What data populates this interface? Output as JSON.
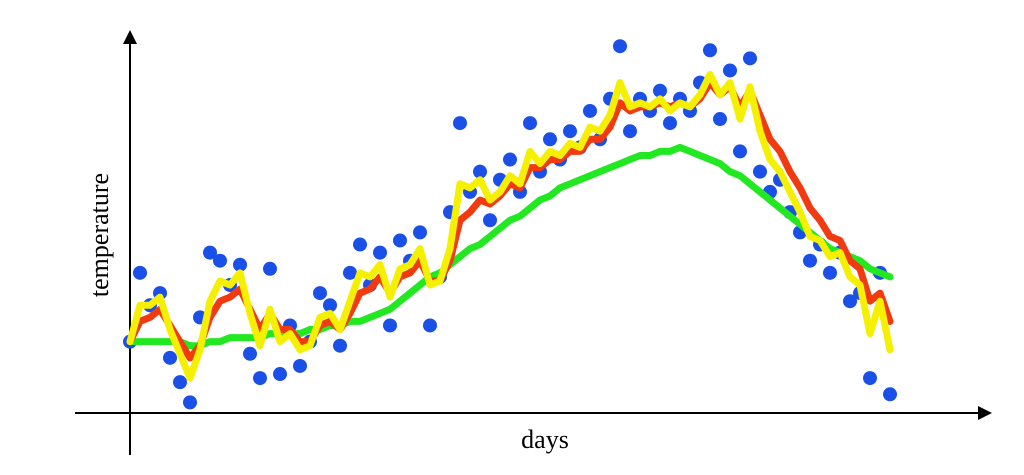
{
  "chart_data": {
    "type": "scatter",
    "xlabel": "days",
    "ylabel": "temperature",
    "xlim": [
      -5.5,
      86
    ],
    "ylim": [
      -10,
      95
    ],
    "x": [
      0,
      1,
      2,
      3,
      4,
      5,
      6,
      7,
      8,
      9,
      10,
      11,
      12,
      13,
      14,
      15,
      16,
      17,
      18,
      19,
      20,
      21,
      22,
      23,
      24,
      25,
      26,
      27,
      28,
      29,
      30,
      31,
      32,
      33,
      34,
      35,
      36,
      37,
      38,
      39,
      40,
      41,
      42,
      43,
      44,
      45,
      46,
      47,
      48,
      49,
      50,
      51,
      52,
      53,
      54,
      55,
      56,
      57,
      58,
      59,
      60,
      61,
      62,
      63,
      64,
      65,
      66,
      67,
      68,
      69,
      70,
      71,
      72,
      73,
      74,
      75,
      76
    ],
    "series": [
      {
        "mode": "markers",
        "color": "#1a4fe8",
        "values": [
          18,
          35,
          27,
          30,
          14,
          8,
          3,
          24,
          40,
          38,
          32,
          37,
          15,
          9,
          36,
          10,
          22,
          12,
          18,
          30,
          27,
          17,
          35,
          42,
          32,
          40,
          22,
          43,
          38,
          45,
          22,
          34,
          50,
          72,
          55,
          60,
          48,
          58,
          63,
          55,
          72,
          60,
          68,
          63,
          70,
          66,
          75,
          68,
          78,
          91,
          70,
          78,
          75,
          80,
          72,
          78,
          75,
          82,
          90,
          73,
          85,
          65,
          88,
          60,
          55,
          58,
          50,
          45,
          38,
          42,
          35,
          40,
          28,
          30,
          9,
          35,
          5
        ]
      },
      {
        "mode": "lines",
        "color": "#22e822",
        "values": [
          18,
          18,
          18,
          18,
          18,
          18,
          17,
          17,
          18,
          18,
          19,
          19,
          19,
          19,
          20,
          20,
          20,
          20,
          21,
          21,
          22,
          22,
          23,
          23,
          24,
          25,
          26,
          28,
          30,
          32,
          34,
          35,
          37,
          39,
          41,
          42,
          44,
          46,
          48,
          49,
          51,
          53,
          54,
          56,
          57,
          58,
          59,
          60,
          61,
          62,
          63,
          64,
          64,
          65,
          65,
          66,
          65,
          64,
          63,
          62,
          60,
          59,
          57,
          55,
          53,
          51,
          49,
          47,
          45,
          43,
          41,
          40,
          39,
          38,
          36,
          35,
          34
        ]
      },
      {
        "mode": "lines",
        "color": "#f23a10",
        "values": [
          18,
          23,
          24,
          26,
          22,
          18,
          14,
          17,
          24,
          28,
          29,
          31,
          26,
          21,
          25,
          21,
          21,
          18,
          18,
          22,
          23,
          21,
          25,
          30,
          31,
          34,
          30,
          34,
          35,
          38,
          33,
          33,
          38,
          48,
          50,
          53,
          52,
          54,
          57,
          56,
          61,
          61,
          63,
          63,
          65,
          65,
          68,
          68,
          71,
          77,
          75,
          76,
          76,
          77,
          76,
          77,
          76,
          78,
          82,
          79,
          81,
          76,
          80,
          74,
          68,
          65,
          60,
          56,
          51,
          48,
          44,
          43,
          38,
          36,
          28,
          30,
          23
        ]
      },
      {
        "mode": "lines",
        "color": "#f5f000",
        "values": [
          18,
          27,
          27,
          29,
          21,
          15,
          9,
          16,
          28,
          33,
          32,
          35,
          25,
          17,
          26,
          18,
          20,
          16,
          17,
          24,
          25,
          21,
          28,
          35,
          34,
          37,
          29,
          36,
          37,
          41,
          32,
          33,
          41,
          57,
          56,
          58,
          53,
          55,
          59,
          57,
          65,
          62,
          65,
          64,
          67,
          66,
          71,
          70,
          74,
          82,
          76,
          77,
          76,
          78,
          75,
          77,
          76,
          79,
          84,
          79,
          82,
          73,
          81,
          70,
          63,
          60,
          55,
          50,
          44,
          43,
          39,
          40,
          34,
          32,
          20,
          28,
          16
        ]
      }
    ]
  }
}
